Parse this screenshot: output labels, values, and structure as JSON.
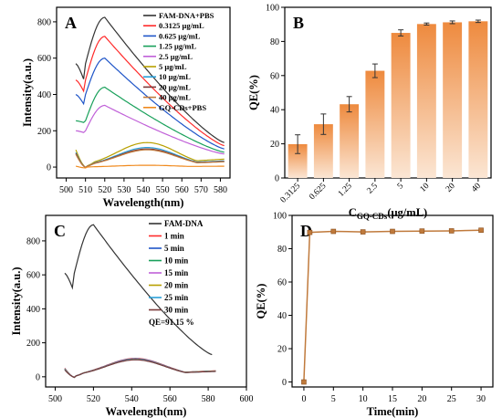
{
  "colors": {
    "axis": "#000000",
    "bar_top": "#ee8a3e",
    "bar_bottom": "#fbe6d4",
    "line_d": "#c07a3c",
    "marker_d": "#c07a3c"
  },
  "chart_data": [
    {
      "panel": "A",
      "type": "line",
      "xlabel": "Wavelength(nm)",
      "ylabel": "Intensity(a.u.)",
      "xlim": [
        495,
        585
      ],
      "ylim": [
        -60,
        880
      ],
      "xticks": [
        "500",
        "510",
        "520",
        "530",
        "540",
        "550",
        "560",
        "570",
        "580"
      ],
      "yticks": [
        "0",
        "200",
        "400",
        "600",
        "800"
      ],
      "legend_position": "top-right",
      "series": [
        {
          "name": "FAM-DNA+PBS",
          "color": "#333333",
          "peak": 825,
          "start": 570,
          "end": 135
        },
        {
          "name": "0.3125 μg/mL",
          "color": "#ff2a2a",
          "peak": 720,
          "start": 480,
          "end": 118
        },
        {
          "name": "0.625 μg/mL",
          "color": "#1f55c8",
          "peak": 600,
          "start": 400,
          "end": 100
        },
        {
          "name": "1.25 μg/mL",
          "color": "#18a05a",
          "peak": 440,
          "start": 255,
          "end": 82
        },
        {
          "name": "2.5 μg/mL",
          "color": "#c060d8",
          "peak": 340,
          "start": 200,
          "end": 72
        },
        {
          "name": "5 μg/mL",
          "color": "#b8a000",
          "peak": 135,
          "start": 95,
          "end": 45
        },
        {
          "name": "10 μg/mL",
          "color": "#2aa0d8",
          "peak": 108,
          "start": 80,
          "end": 35
        },
        {
          "name": "20 μg/mL",
          "color": "#7a3a3a",
          "peak": 100,
          "start": 75,
          "end": 32
        },
        {
          "name": "40 μg/mL",
          "color": "#c07a3c",
          "peak": 95,
          "start": 70,
          "end": 30
        },
        {
          "name": "GQ-CDs+PBS",
          "color": "#f08a1e",
          "peak": 10,
          "start": 5,
          "end": 5
        }
      ]
    },
    {
      "panel": "B",
      "type": "bar",
      "xlabel_main": "C",
      "xlabel_sub": "GQ-CDs",
      "xlabel_tail": "(μg/mL)",
      "ylabel": "QE(%)",
      "ylim": [
        0,
        100
      ],
      "yticks": [
        "0",
        "20",
        "40",
        "60",
        "80",
        "100"
      ],
      "categories": [
        "0.3125",
        "0.625",
        "1.25",
        "2.5",
        "5",
        "10",
        "20",
        "40"
      ],
      "values": [
        19.8,
        31.5,
        43.2,
        62.8,
        85.0,
        90.2,
        91.2,
        91.8
      ],
      "errors": [
        5.5,
        6.0,
        4.5,
        4.0,
        1.8,
        0.6,
        0.8,
        0.7
      ]
    },
    {
      "panel": "C",
      "type": "line",
      "xlabel": "Wavelength(nm)",
      "ylabel": "Intensity(a.u.)",
      "xlim": [
        495,
        600
      ],
      "ylim": [
        -60,
        950
      ],
      "xticks": [
        "500",
        "520",
        "540",
        "560",
        "580",
        "600"
      ],
      "yticks": [
        "0",
        "200",
        "400",
        "600",
        "800"
      ],
      "legend_position": "top-right",
      "annotation": "QE=91.15 %",
      "series": [
        {
          "name": "FAM-DNA",
          "color": "#333333",
          "peak": 895,
          "start": 610,
          "end": 130
        },
        {
          "name": "1 min",
          "color": "#ff2a2a",
          "peak": 108,
          "start": 50,
          "end": 35
        },
        {
          "name": "5 min",
          "color": "#1f55c8",
          "peak": 106,
          "start": 48,
          "end": 34
        },
        {
          "name": "10 min",
          "color": "#18a05a",
          "peak": 104,
          "start": 46,
          "end": 34
        },
        {
          "name": "15 min",
          "color": "#c060d8",
          "peak": 103,
          "start": 45,
          "end": 33
        },
        {
          "name": "20 min",
          "color": "#b8a000",
          "peak": 102,
          "start": 44,
          "end": 33
        },
        {
          "name": "25 min",
          "color": "#2aa0d8",
          "peak": 101,
          "start": 42,
          "end": 32
        },
        {
          "name": "30 min",
          "color": "#7a3a3a",
          "peak": 100,
          "start": 40,
          "end": 32
        }
      ]
    },
    {
      "panel": "D",
      "type": "line",
      "xlabel": "Time(min)",
      "ylabel": "QE(%)",
      "xlim": [
        -2,
        32
      ],
      "ylim": [
        -3,
        100
      ],
      "xticks": [
        "0",
        "5",
        "10",
        "15",
        "20",
        "25",
        "30"
      ],
      "yticks": [
        "0",
        "20",
        "40",
        "60",
        "80",
        "100"
      ],
      "x": [
        0,
        1,
        5,
        10,
        15,
        20,
        25,
        30
      ],
      "y": [
        0,
        89.8,
        90.4,
        90.1,
        90.4,
        90.6,
        90.7,
        91.1
      ]
    }
  ]
}
